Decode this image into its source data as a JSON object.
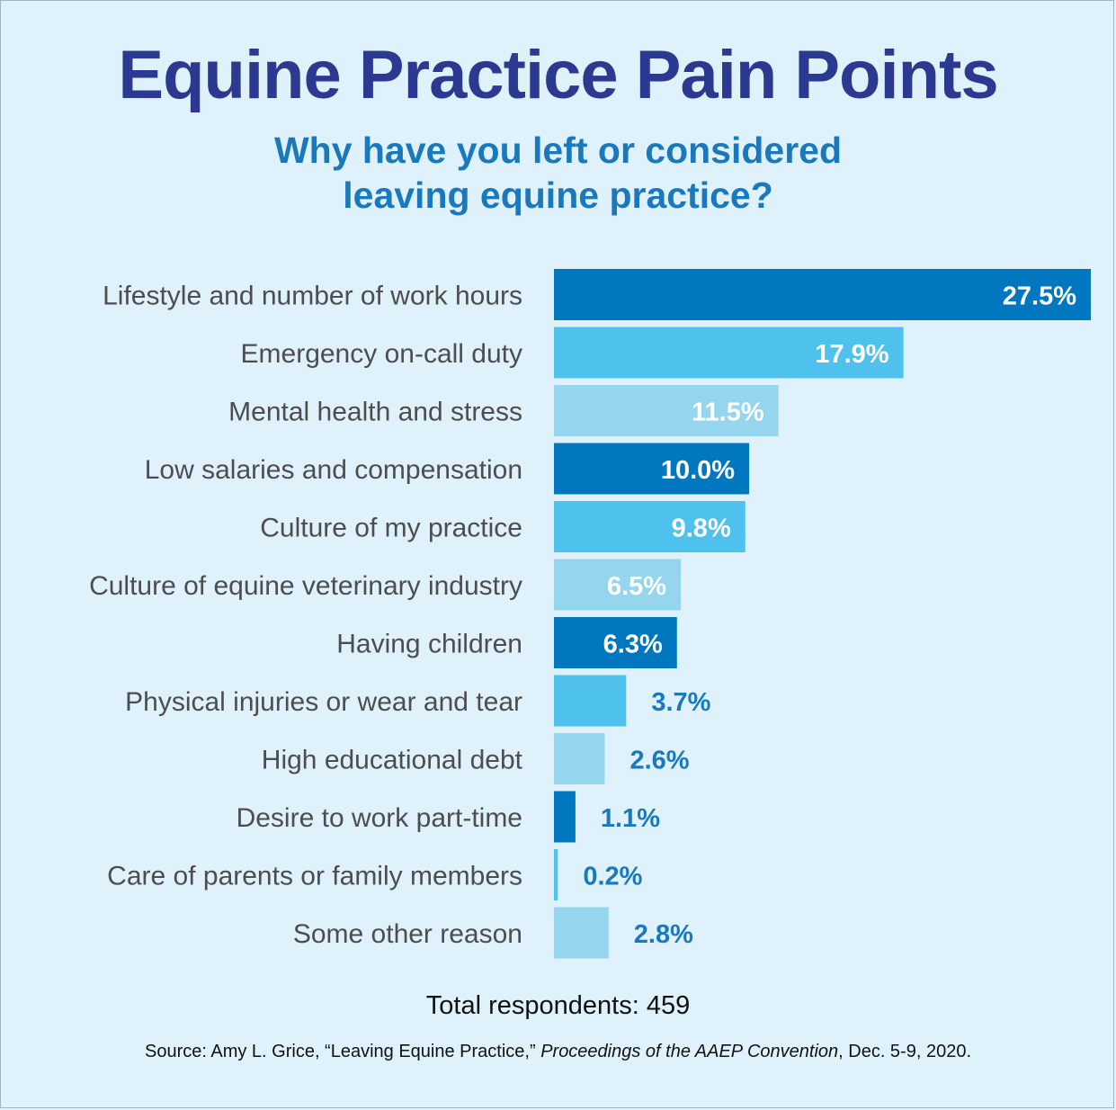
{
  "title": "Equine Practice Pain Points",
  "subtitle_lines": [
    "Why have you left or considered",
    "leaving equine practice?"
  ],
  "chart_data": {
    "type": "bar",
    "orientation": "horizontal",
    "categories": [
      "Lifestyle and number of work hours",
      "Emergency on-call duty",
      "Mental health and stress",
      "Low salaries and compensation",
      "Culture of my practice",
      "Culture of equine veterinary industry",
      "Having children",
      "Physical injuries or wear and tear",
      "High educational debt",
      "Desire to work part-time",
      "Care of parents or family members",
      "Some other reason"
    ],
    "values": [
      27.5,
      17.9,
      11.5,
      10.0,
      9.8,
      6.5,
      6.3,
      3.7,
      2.6,
      1.1,
      0.2,
      2.8
    ],
    "value_labels": [
      "27.5%",
      "17.9%",
      "11.5%",
      "10.0%",
      "9.8%",
      "6.5%",
      "6.3%",
      "3.7%",
      "2.6%",
      "1.1%",
      "0.2%",
      "2.8%"
    ],
    "unit": "%",
    "xlim": [
      0,
      27.5
    ],
    "grid": false,
    "colors": [
      "#0077be",
      "#4ec2ec",
      "#95d5ee"
    ]
  },
  "respondents": "Total respondents: 459",
  "source": {
    "prefix": "Source: Amy L. Grice, “Leaving Equine Practice,” ",
    "italic": "Proceedings of the AAEP Convention",
    "suffix": ", Dec. 5-9, 2020."
  }
}
